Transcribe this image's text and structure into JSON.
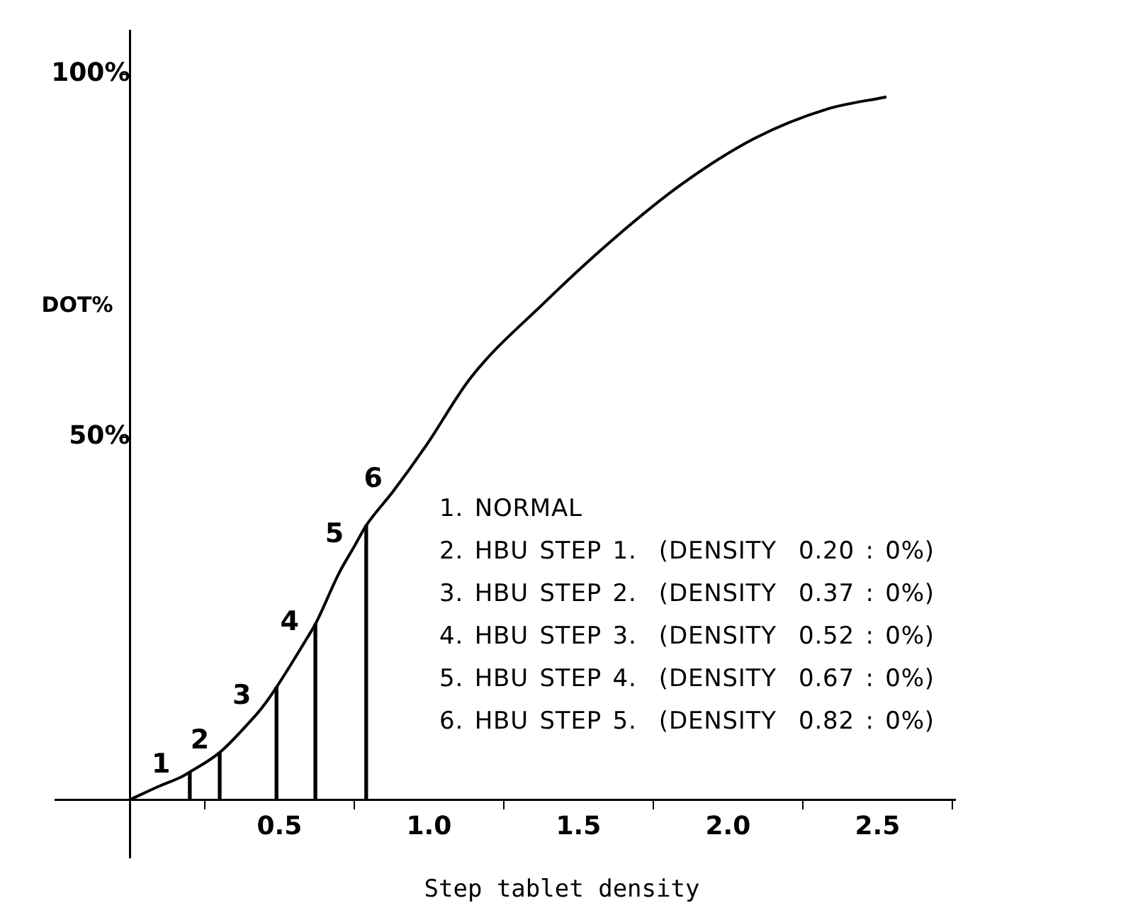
{
  "chart_data": {
    "type": "line",
    "xlabel": "Step tablet density",
    "ylabel": "DOT%",
    "xlim": [
      -0.25,
      2.76
    ],
    "ylim": [
      -8,
      106
    ],
    "xticks": [
      0.5,
      {
        "value": 1,
        "label": "1.0"
      },
      1.5,
      {
        "value": 2,
        "label": "2.0"
      },
      2.5
    ],
    "yticks": [
      {
        "value": 50,
        "label": "50%"
      },
      {
        "value": 100,
        "label": "100%"
      }
    ],
    "series": [
      {
        "color": "#000000",
        "x": [
          0,
          0.1,
          0.17,
          0.2,
          0.3,
          0.4,
          0.44,
          0.49,
          0.6,
          0.62,
          0.7,
          0.75,
          0.79,
          0.88,
          0.99,
          1.14,
          1.38,
          1.62,
          1.85,
          2.09,
          2.33,
          2.53
        ],
        "values": [
          0,
          1.9,
          3.1,
          3.8,
          6.5,
          10.7,
          12.6,
          15.5,
          22.8,
          24.2,
          31.3,
          34.9,
          37.8,
          42.5,
          48.8,
          58.2,
          68.3,
          77.4,
          85,
          91.2,
          95.2,
          96.9
        ]
      },
      {
        "type": "bar",
        "color": "#000000",
        "x": [
          0.2,
          0.3,
          0.49,
          0.62,
          0.79
        ],
        "values": [
          3.8,
          6.5,
          15.5,
          24.2,
          37.8
        ]
      }
    ],
    "annotations": [
      {
        "text": "1",
        "x": 0.17,
        "y": 3.1
      },
      {
        "text": "2",
        "x": 0.3,
        "y": 6.5
      },
      {
        "text": "3",
        "x": 0.44,
        "y": 12.6
      },
      {
        "text": "4",
        "x": 0.6,
        "y": 22.8
      },
      {
        "text": "5",
        "x": 0.75,
        "y": 34.9
      },
      {
        "text": "6",
        "x": 0.88,
        "y": 42.5
      },
      "1. NORMAL",
      "2. HBU STEP 1.  (DENSITY  0.20 : 0%)",
      "3. HBU STEP 2.  (DENSITY  0.37 : 0%)",
      "4. HBU STEP 3.  (DENSITY  0.52 : 0%)",
      "5. HBU STEP 4.  (DENSITY  0.67 : 0%)",
      "6. HBU STEP 5.  (DENSITY  0.82 : 0%)"
    ]
  }
}
